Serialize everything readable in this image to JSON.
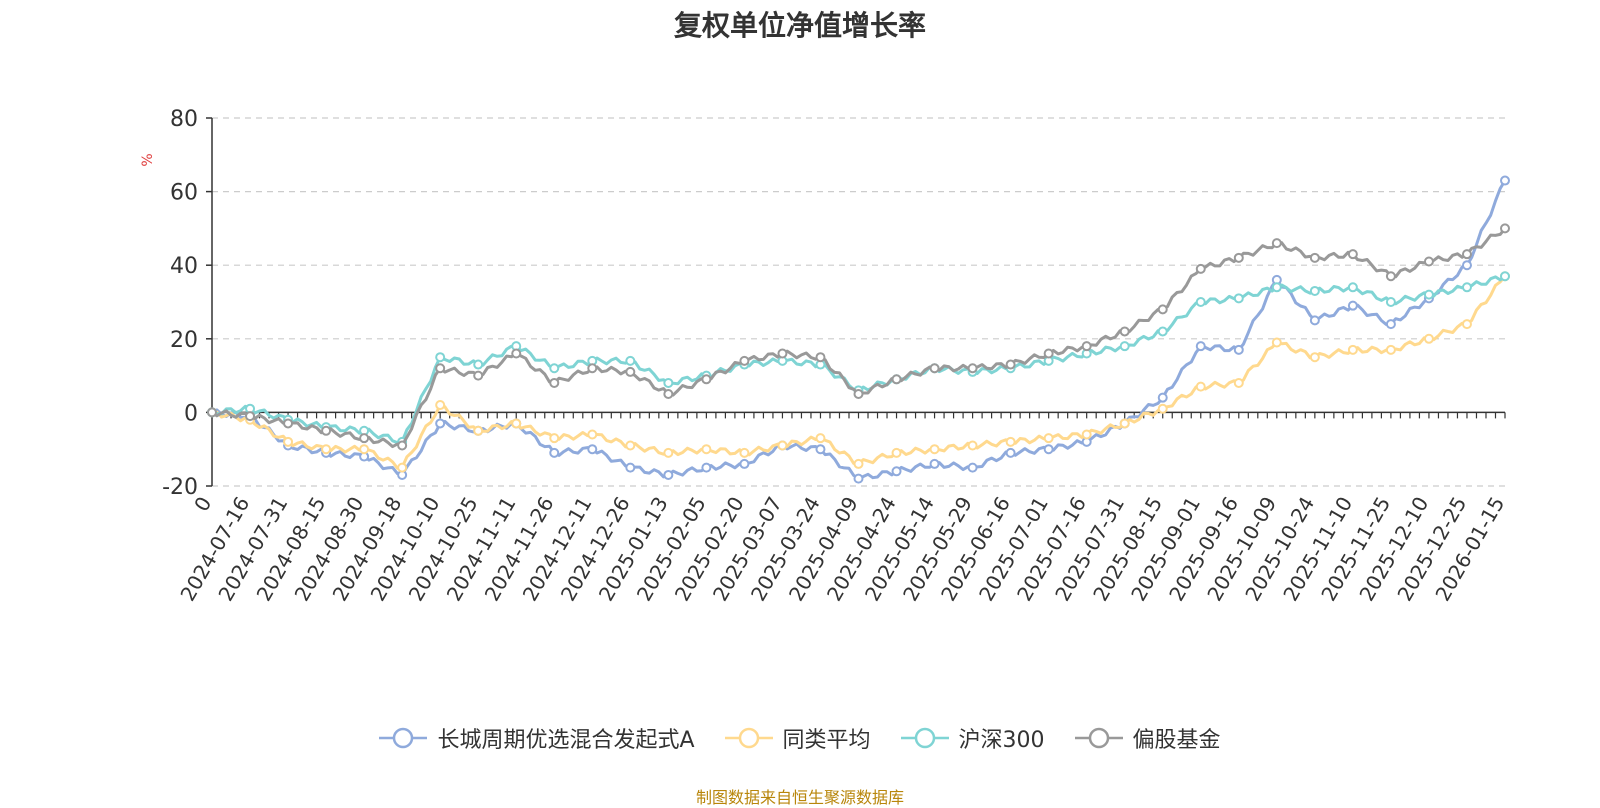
{
  "title": "复权单位净值增长率",
  "footer": "制图数据来自恒生聚源数据库",
  "chart_data": {
    "type": "line",
    "ylabel": "%",
    "ylim": [
      -20,
      80
    ],
    "yticks": [
      -20,
      0,
      20,
      40,
      60,
      80
    ],
    "grid": true,
    "legend_position": "bottom",
    "x_tick_labels": [
      "0",
      "2024-07-16",
      "2024-07-31",
      "2024-08-15",
      "2024-08-30",
      "2024-09-18",
      "2024-10-10",
      "2024-10-25",
      "2024-11-11",
      "2024-11-26",
      "2024-12-11",
      "2024-12-26",
      "2025-01-13",
      "2025-02-05",
      "2025-02-20",
      "2025-03-07",
      "2025-03-24",
      "2025-04-09",
      "2025-04-24",
      "2025-05-14",
      "2025-05-29",
      "2025-06-16",
      "2025-07-01",
      "2025-07-16",
      "2025-07-31",
      "2025-08-15",
      "2025-09-01",
      "2025-09-16",
      "2025-10-09",
      "2025-10-24",
      "2025-11-10",
      "2025-11-25",
      "2025-12-10",
      "2025-12-25",
      "2026-01-15"
    ],
    "x": [
      0,
      1,
      2,
      3,
      4,
      5,
      6,
      7,
      8,
      9,
      10,
      11,
      12,
      13,
      14,
      15,
      16,
      17,
      18,
      19,
      20,
      21,
      22,
      23,
      24,
      25,
      26,
      27,
      28,
      29,
      30,
      31,
      32,
      33,
      34
    ],
    "series": [
      {
        "name": "长城周期优选混合发起式A",
        "color": "#8faadc",
        "values": [
          0,
          -1,
          -9,
          -11,
          -12,
          -17,
          -3,
          -5,
          -3,
          -11,
          -10,
          -15,
          -17,
          -15,
          -14,
          -9,
          -10,
          -18,
          -16,
          -14,
          -15,
          -11,
          -10,
          -8,
          -3,
          4,
          18,
          17,
          36,
          25,
          29,
          24,
          31,
          40,
          63
        ]
      },
      {
        "name": "同类平均",
        "color": "#ffd98e",
        "values": [
          0,
          -2,
          -8,
          -10,
          -10,
          -15,
          2,
          -5,
          -3,
          -7,
          -6,
          -9,
          -11,
          -10,
          -11,
          -9,
          -7,
          -14,
          -11,
          -10,
          -9,
          -8,
          -7,
          -6,
          -3,
          1,
          7,
          8,
          19,
          15,
          17,
          17,
          20,
          24,
          37
        ]
      },
      {
        "name": "沪深300",
        "color": "#7fd4d4",
        "values": [
          0,
          1,
          -2,
          -4,
          -5,
          -8,
          15,
          13,
          18,
          12,
          14,
          14,
          8,
          10,
          13,
          14,
          13,
          6,
          9,
          12,
          11,
          12,
          14,
          16,
          18,
          22,
          30,
          31,
          34,
          33,
          34,
          30,
          32,
          34,
          37
        ]
      },
      {
        "name": "偏股基金",
        "color": "#999999",
        "values": [
          0,
          -1,
          -3,
          -5,
          -7,
          -9,
          12,
          10,
          16,
          8,
          12,
          11,
          5,
          9,
          14,
          16,
          15,
          5,
          9,
          12,
          12,
          13,
          16,
          18,
          22,
          28,
          39,
          42,
          46,
          42,
          43,
          37,
          41,
          43,
          50
        ]
      }
    ]
  }
}
